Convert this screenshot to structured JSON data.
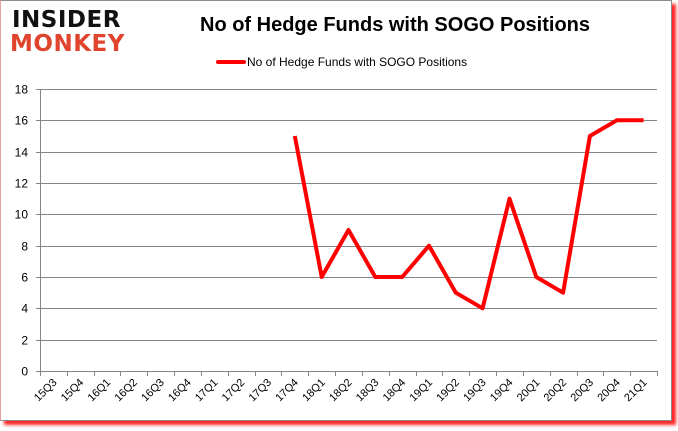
{
  "logo": {
    "line1": "INSIDER",
    "line2": "MONKEY"
  },
  "title": "No of Hedge Funds with SOGO Positions",
  "legend": {
    "label": "No of Hedge Funds with SOGO Positions",
    "color": "#ff0000"
  },
  "colors": {
    "line": "#ff0000",
    "grid": "#868686",
    "axis": "#868686",
    "shadow": "#ff0000",
    "logo_top": "#111111",
    "logo_bottom": "#e0442c"
  },
  "chart_data": {
    "type": "line",
    "title": "No of Hedge Funds with SOGO Positions",
    "xlabel": "",
    "ylabel": "",
    "ylim": [
      0,
      18
    ],
    "yticks": [
      0,
      2,
      4,
      6,
      8,
      10,
      12,
      14,
      16,
      18
    ],
    "grid": true,
    "legend_position": "top",
    "categories": [
      "15Q3",
      "15Q4",
      "16Q1",
      "16Q2",
      "16Q3",
      "16Q4",
      "17Q1",
      "17Q2",
      "17Q3",
      "17Q4",
      "18Q1",
      "18Q2",
      "18Q3",
      "18Q4",
      "19Q1",
      "19Q2",
      "19Q3",
      "19Q4",
      "20Q1",
      "20Q2",
      "20Q3",
      "20Q4",
      "21Q1"
    ],
    "series": [
      {
        "name": "No of Hedge Funds with SOGO Positions",
        "values": [
          null,
          null,
          null,
          null,
          null,
          null,
          null,
          null,
          null,
          15,
          6,
          9,
          6,
          6,
          8,
          5,
          4,
          11,
          6,
          5,
          15,
          16,
          16
        ]
      }
    ]
  }
}
